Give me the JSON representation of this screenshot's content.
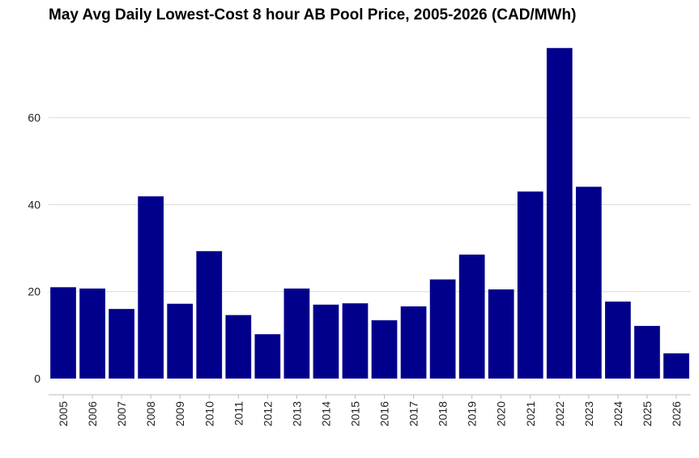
{
  "title": "May Avg Daily Lowest-Cost 8 hour AB Pool Price, 2005-2026 (CAD/MWh)",
  "colors": {
    "bar": "#00008B",
    "grid": "#d9d9d9",
    "axis": "#bdbdbd",
    "text": "#000000"
  },
  "chart_data": {
    "type": "bar",
    "title": "May Avg Daily Lowest-Cost 8 hour AB Pool Price, 2005-2026 (CAD/MWh)",
    "xlabel": "",
    "ylabel": "",
    "categories": [
      "2005",
      "2006",
      "2007",
      "2008",
      "2009",
      "2010",
      "2011",
      "2012",
      "2013",
      "2014",
      "2015",
      "2016",
      "2017",
      "2018",
      "2019",
      "2020",
      "2021",
      "2022",
      "2023",
      "2024",
      "2025",
      "2026"
    ],
    "values": [
      21.0,
      20.7,
      16.0,
      41.9,
      17.2,
      29.3,
      14.6,
      10.2,
      20.7,
      17.0,
      17.3,
      13.4,
      16.6,
      22.8,
      28.5,
      20.5,
      43.0,
      76.0,
      44.1,
      17.7,
      12.1,
      5.8
    ],
    "ylim": [
      0,
      78
    ],
    "yticks": [
      0,
      20,
      40,
      60
    ],
    "grid": true,
    "legend": "none"
  }
}
